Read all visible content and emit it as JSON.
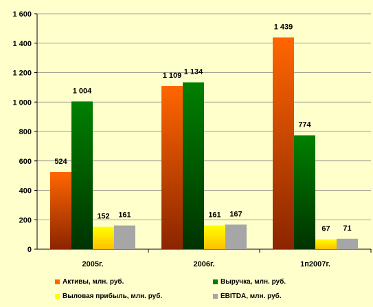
{
  "chart_data": {
    "type": "bar",
    "title": "",
    "xlabel": "",
    "ylabel": "",
    "categories": [
      "2005г.",
      "2006г.",
      "1п2007г."
    ],
    "ylim": [
      0,
      1600
    ],
    "yticks": [
      0,
      200,
      400,
      600,
      800,
      1000,
      1200,
      1400,
      1600
    ],
    "ytick_labels": [
      "0",
      "200",
      "400",
      "600",
      "800",
      "1 000",
      "1 200",
      "1 400",
      "1 600"
    ],
    "grid": true,
    "legend_position": "bottom",
    "series": [
      {
        "name": "Активы, млн. руб.",
        "values": [
          524,
          1109,
          1439
        ],
        "labels": [
          "524",
          "1 109",
          "1 439"
        ],
        "color": "#FF6600",
        "color_dark": "#8B2500"
      },
      {
        "name": "Выручка, млн. руб.",
        "values": [
          1004,
          1134,
          774
        ],
        "labels": [
          "1 004",
          "1 134",
          "774"
        ],
        "color": "#008000",
        "color_dark": "#003300"
      },
      {
        "name": "Выловая прибыль, млн. руб.",
        "values": [
          152,
          161,
          67
        ],
        "labels": [
          "152",
          "161",
          "67"
        ],
        "color": "#FFFF00",
        "color_dark": "#FFC000"
      },
      {
        "name": "EBITDA, млн. руб.",
        "values": [
          161,
          167,
          71
        ],
        "labels": [
          "161",
          "167",
          "71"
        ],
        "color": "#A6A6A6",
        "color_dark": "#A6A6A6"
      }
    ]
  }
}
